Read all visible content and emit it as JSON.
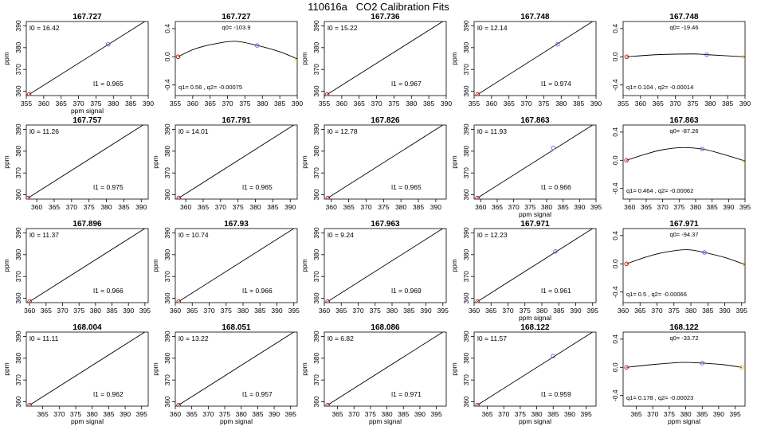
{
  "title": "110616a   CO2 Calibration Fits",
  "colors": {
    "low": "#cc0000",
    "mid": "#8844ee",
    "high": "#ffa500",
    "axis": "#000000",
    "line": "#000000"
  },
  "chart_data": [
    {
      "type": "scatter",
      "title": "167.727",
      "xlabel": "ppm signal",
      "ylabel": "ppm",
      "xlim": [
        355,
        390
      ],
      "ylim": [
        358,
        392
      ],
      "xticks": [
        355,
        360,
        365,
        370,
        375,
        380,
        385,
        390
      ],
      "yticks": [
        360,
        370,
        380,
        390
      ],
      "points": [
        [
          355.8,
          358.5
        ],
        [
          378.5,
          381.5
        ],
        [
          390,
          393
        ]
      ],
      "fit_line": [
        [
          355.8,
          358.5
        ],
        [
          390,
          393
        ]
      ],
      "label_top": "l0 =  16.42",
      "label_bottom": "l1 =  0.965"
    },
    {
      "type": "line",
      "title": "167.727",
      "xlabel": "",
      "ylabel": "",
      "xlim": [
        355,
        390
      ],
      "ylim": [
        -0.55,
        0.5
      ],
      "xticks": [
        355,
        360,
        365,
        370,
        375,
        380,
        385,
        390
      ],
      "yticks": [
        -0.4,
        0,
        0.4
      ],
      "yticklabels": [
        "-0.4",
        "0.0",
        "0.4"
      ],
      "points": [
        [
          355.8,
          0
        ],
        [
          378.5,
          0.16
        ],
        [
          390,
          -0.03
        ]
      ],
      "curve": [
        [
          355.8,
          0
        ],
        [
          360,
          0.1
        ],
        [
          365,
          0.17
        ],
        [
          372,
          0.22
        ],
        [
          378.5,
          0.16
        ],
        [
          385,
          0.07
        ],
        [
          390,
          -0.03
        ]
      ],
      "label_top": "q0= -103.9",
      "label_bottom": "q1= 0.56  , q2= -0.00075"
    },
    {
      "type": "scatter",
      "title": "167.736",
      "xlabel": "",
      "ylabel": "ppm",
      "xlim": [
        355,
        390
      ],
      "ylim": [
        358,
        392
      ],
      "xticks": [
        355,
        360,
        365,
        370,
        375,
        380,
        385,
        390
      ],
      "yticks": [
        360,
        370,
        380,
        390
      ],
      "points": [
        [
          355.8,
          358.5
        ],
        [
          390,
          393
        ]
      ],
      "fit_line": [
        [
          355.8,
          358.5
        ],
        [
          390,
          393
        ]
      ],
      "label_top": "l0 =  15.22",
      "label_bottom": "l1 =  0.967"
    },
    {
      "type": "scatter",
      "title": "167.748",
      "xlabel": "",
      "ylabel": "ppm",
      "xlim": [
        355,
        390
      ],
      "ylim": [
        358,
        392
      ],
      "xticks": [
        355,
        360,
        365,
        370,
        375,
        380,
        385,
        390
      ],
      "yticks": [
        360,
        370,
        380,
        390
      ],
      "points": [
        [
          356,
          358.5
        ],
        [
          379,
          381.5
        ],
        [
          390,
          393
        ]
      ],
      "fit_line": [
        [
          356,
          358.5
        ],
        [
          390,
          393
        ]
      ],
      "label_top": "l0 =  12.14",
      "label_bottom": "l1 =  0.974"
    },
    {
      "type": "line",
      "title": "167.748",
      "xlabel": "",
      "ylabel": "",
      "xlim": [
        355,
        390
      ],
      "ylim": [
        -0.55,
        0.5
      ],
      "xticks": [
        355,
        360,
        365,
        370,
        375,
        380,
        385,
        390
      ],
      "yticks": [
        -0.4,
        0,
        0.4
      ],
      "yticklabels": [
        "-0.4",
        "0.0",
        "0.4"
      ],
      "points": [
        [
          356,
          0
        ],
        [
          379,
          0.03
        ],
        [
          390,
          0
        ]
      ],
      "curve": [
        [
          356,
          0
        ],
        [
          365,
          0.03
        ],
        [
          375,
          0.04
        ],
        [
          379,
          0.03
        ],
        [
          390,
          0
        ]
      ],
      "label_top": "q0= -19.46",
      "label_bottom": "q1= 0.104  , q2= -0.00014"
    },
    {
      "type": "scatter",
      "title": "167.757",
      "xlabel": "",
      "ylabel": "ppm",
      "xlim": [
        357,
        392
      ],
      "ylim": [
        358,
        392
      ],
      "xticks": [
        360,
        365,
        370,
        375,
        380,
        385,
        390
      ],
      "yticks": [
        360,
        370,
        380,
        390
      ],
      "points": [
        [
          357.5,
          358.5
        ],
        [
          391.5,
          393
        ]
      ],
      "fit_line": [
        [
          357.5,
          358.5
        ],
        [
          391.5,
          393
        ]
      ],
      "label_top": "l0 =  11.26",
      "label_bottom": "l1 =  0.975"
    },
    {
      "type": "scatter",
      "title": "167.791",
      "xlabel": "",
      "ylabel": "ppm",
      "xlim": [
        357,
        392
      ],
      "ylim": [
        358,
        392
      ],
      "xticks": [
        360,
        365,
        370,
        375,
        380,
        385,
        390
      ],
      "yticks": [
        360,
        370,
        380,
        390
      ],
      "points": [
        [
          358,
          358.5
        ],
        [
          392,
          393
        ]
      ],
      "fit_line": [
        [
          358,
          358.5
        ],
        [
          392,
          393
        ]
      ],
      "label_top": "l0 =  14.01",
      "label_bottom": "l1 =  0.965"
    },
    {
      "type": "scatter",
      "title": "167.826",
      "xlabel": "",
      "ylabel": "ppm",
      "xlim": [
        358,
        393
      ],
      "ylim": [
        358,
        392
      ],
      "xticks": [
        360,
        365,
        370,
        375,
        380,
        385,
        390
      ],
      "yticks": [
        360,
        370,
        380,
        390
      ],
      "points": [
        [
          359,
          358.5
        ],
        [
          393,
          393
        ]
      ],
      "fit_line": [
        [
          359,
          358.5
        ],
        [
          393,
          393
        ]
      ],
      "label_top": "l0 =  12.78",
      "label_bottom": "l1 =  0.965"
    },
    {
      "type": "scatter",
      "title": "167.863",
      "xlabel": "ppm signal",
      "ylabel": "ppm",
      "xlim": [
        358,
        395
      ],
      "ylim": [
        358,
        392
      ],
      "xticks": [
        360,
        365,
        370,
        375,
        380,
        385,
        390,
        395
      ],
      "yticks": [
        360,
        370,
        380,
        390
      ],
      "points": [
        [
          359,
          358.5
        ],
        [
          382,
          381.5
        ],
        [
          395,
          393
        ]
      ],
      "fit_line": [
        [
          359,
          358.5
        ],
        [
          395,
          393
        ]
      ],
      "label_top": "l0 =  11.93",
      "label_bottom": "l1 =  0.966"
    },
    {
      "type": "line",
      "title": "167.863",
      "xlabel": "",
      "ylabel": "",
      "xlim": [
        358,
        395
      ],
      "ylim": [
        -0.55,
        0.5
      ],
      "xticks": [
        360,
        365,
        370,
        375,
        380,
        385,
        390,
        395
      ],
      "yticks": [
        -0.4,
        0,
        0.4
      ],
      "yticklabels": [
        "-0.4",
        "0.0",
        "0.4"
      ],
      "points": [
        [
          359,
          0
        ],
        [
          382,
          0.16
        ],
        [
          395,
          -0.01
        ]
      ],
      "curve": [
        [
          359,
          0
        ],
        [
          365,
          0.09
        ],
        [
          370,
          0.15
        ],
        [
          376,
          0.18
        ],
        [
          382,
          0.16
        ],
        [
          388,
          0.09
        ],
        [
          395,
          -0.01
        ]
      ],
      "label_top": "q0= -87.26",
      "label_bottom": "q1= 0.464  , q2= -0.00062"
    },
    {
      "type": "scatter",
      "title": "167.896",
      "xlabel": "",
      "ylabel": "ppm",
      "xlim": [
        359,
        396
      ],
      "ylim": [
        358,
        392
      ],
      "xticks": [
        360,
        365,
        370,
        375,
        380,
        385,
        390,
        395
      ],
      "yticks": [
        360,
        370,
        380,
        390
      ],
      "points": [
        [
          360,
          358.5
        ],
        [
          396,
          393
        ]
      ],
      "fit_line": [
        [
          360,
          358.5
        ],
        [
          396,
          393
        ]
      ],
      "label_top": "l0 =  11.37",
      "label_bottom": "l1 =  0.966"
    },
    {
      "type": "scatter",
      "title": "167.93",
      "xlabel": "",
      "ylabel": "ppm",
      "xlim": [
        360,
        396
      ],
      "ylim": [
        358,
        392
      ],
      "xticks": [
        360,
        365,
        370,
        375,
        380,
        385,
        390,
        395
      ],
      "yticks": [
        360,
        370,
        380,
        390
      ],
      "points": [
        [
          361,
          358.5
        ],
        [
          396,
          393
        ]
      ],
      "fit_line": [
        [
          361,
          358.5
        ],
        [
          396,
          393
        ]
      ],
      "label_top": "l0 =  10.74",
      "label_bottom": "l1 =  0.966"
    },
    {
      "type": "scatter",
      "title": "167.963",
      "xlabel": "",
      "ylabel": "ppm",
      "xlim": [
        360,
        396
      ],
      "ylim": [
        358,
        392
      ],
      "xticks": [
        360,
        365,
        370,
        375,
        380,
        385,
        390,
        395
      ],
      "yticks": [
        360,
        370,
        380,
        390
      ],
      "points": [
        [
          361,
          358.5
        ],
        [
          396,
          393
        ]
      ],
      "fit_line": [
        [
          361,
          358.5
        ],
        [
          396,
          393
        ]
      ],
      "label_top": "l0 =  9.24",
      "label_bottom": "l1 =  0.969"
    },
    {
      "type": "scatter",
      "title": "167.971",
      "xlabel": "ppm signal",
      "ylabel": "ppm",
      "xlim": [
        360,
        396
      ],
      "ylim": [
        358,
        392
      ],
      "xticks": [
        360,
        365,
        370,
        375,
        380,
        385,
        390,
        395
      ],
      "yticks": [
        360,
        370,
        380,
        390
      ],
      "points": [
        [
          361,
          358.5
        ],
        [
          384,
          381.5
        ],
        [
          396,
          393
        ]
      ],
      "fit_line": [
        [
          361,
          358.5
        ],
        [
          396,
          393
        ]
      ],
      "label_top": "l0 =  12.23",
      "label_bottom": "l1 =  0.961"
    },
    {
      "type": "line",
      "title": "167.971",
      "xlabel": "",
      "ylabel": "",
      "xlim": [
        360,
        396
      ],
      "ylim": [
        -0.55,
        0.5
      ],
      "xticks": [
        360,
        365,
        370,
        375,
        380,
        385,
        390,
        395
      ],
      "yticks": [
        -0.4,
        0,
        0.4
      ],
      "yticklabels": [
        "-0.4",
        "0.0",
        "0.4"
      ],
      "points": [
        [
          361,
          0
        ],
        [
          384,
          0.16
        ],
        [
          396,
          -0.01
        ]
      ],
      "curve": [
        [
          361,
          0
        ],
        [
          367,
          0.1
        ],
        [
          373,
          0.17
        ],
        [
          379,
          0.2
        ],
        [
          384,
          0.16
        ],
        [
          390,
          0.09
        ],
        [
          396,
          -0.01
        ]
      ],
      "label_top": "q0= -94.37",
      "label_bottom": "q1= 0.5  , q2= -0.00066"
    },
    {
      "type": "scatter",
      "title": "168.004",
      "xlabel": "ppm signal",
      "ylabel": "ppm",
      "xlim": [
        360,
        397
      ],
      "ylim": [
        358,
        392
      ],
      "xticks": [
        365,
        370,
        375,
        380,
        385,
        390,
        395
      ],
      "yticks": [
        360,
        370,
        380,
        390
      ],
      "points": [
        [
          361,
          358.5
        ],
        [
          397,
          393
        ]
      ],
      "fit_line": [
        [
          361,
          358.5
        ],
        [
          397,
          393
        ]
      ],
      "label_top": "l0 =  11.11",
      "label_bottom": "l1 =  0.962"
    },
    {
      "type": "scatter",
      "title": "168.051",
      "xlabel": "ppm signal",
      "ylabel": "ppm",
      "xlim": [
        360,
        397
      ],
      "ylim": [
        358,
        392
      ],
      "xticks": [
        360,
        365,
        370,
        375,
        380,
        385,
        390,
        395
      ],
      "yticks": [
        360,
        370,
        380,
        390
      ],
      "points": [
        [
          361,
          358.5
        ],
        [
          397,
          393
        ]
      ],
      "fit_line": [
        [
          361,
          358.5
        ],
        [
          397,
          393
        ]
      ],
      "label_top": "l0 =  13.22",
      "label_bottom": "l1 =  0.957"
    },
    {
      "type": "scatter",
      "title": "168.086",
      "xlabel": "ppm signal",
      "ylabel": "ppm",
      "xlim": [
        361,
        398
      ],
      "ylim": [
        358,
        392
      ],
      "xticks": [
        365,
        370,
        375,
        380,
        385,
        390,
        395
      ],
      "yticks": [
        360,
        370,
        380,
        390
      ],
      "points": [
        [
          362,
          358.5
        ],
        [
          398,
          393
        ]
      ],
      "fit_line": [
        [
          362,
          358.5
        ],
        [
          398,
          393
        ]
      ],
      "label_top": "l0 =  6.82",
      "label_bottom": "l1 =  0.971"
    },
    {
      "type": "scatter",
      "title": "168.122",
      "xlabel": "ppm signal",
      "ylabel": "ppm",
      "xlim": [
        361,
        398
      ],
      "ylim": [
        358,
        392
      ],
      "xticks": [
        365,
        370,
        375,
        380,
        385,
        390,
        395
      ],
      "yticks": [
        360,
        370,
        380,
        390
      ],
      "points": [
        [
          362,
          358.5
        ],
        [
          385,
          381
        ],
        [
          398,
          393
        ]
      ],
      "fit_line": [
        [
          362,
          358.5
        ],
        [
          398,
          393
        ]
      ],
      "label_top": "l0 =  11.57",
      "label_bottom": "l1 =  0.959"
    },
    {
      "type": "line",
      "title": "168.122",
      "xlabel": "ppm signal",
      "ylabel": "",
      "xlim": [
        361,
        398
      ],
      "ylim": [
        -0.55,
        0.5
      ],
      "xticks": [
        365,
        370,
        375,
        380,
        385,
        390,
        395
      ],
      "yticks": [
        -0.4,
        0,
        0.4
      ],
      "yticklabels": [
        "-0.4",
        "0.0",
        "0.4"
      ],
      "points": [
        [
          362,
          0
        ],
        [
          385,
          0.06
        ],
        [
          397,
          0
        ]
      ],
      "curve": [
        [
          362,
          0
        ],
        [
          370,
          0.04
        ],
        [
          379,
          0.07
        ],
        [
          385,
          0.06
        ],
        [
          391,
          0.04
        ],
        [
          397,
          0
        ]
      ],
      "label_top": "q0= -33.72",
      "label_bottom": "q1= 0.178  , q2= -0.00023"
    }
  ]
}
